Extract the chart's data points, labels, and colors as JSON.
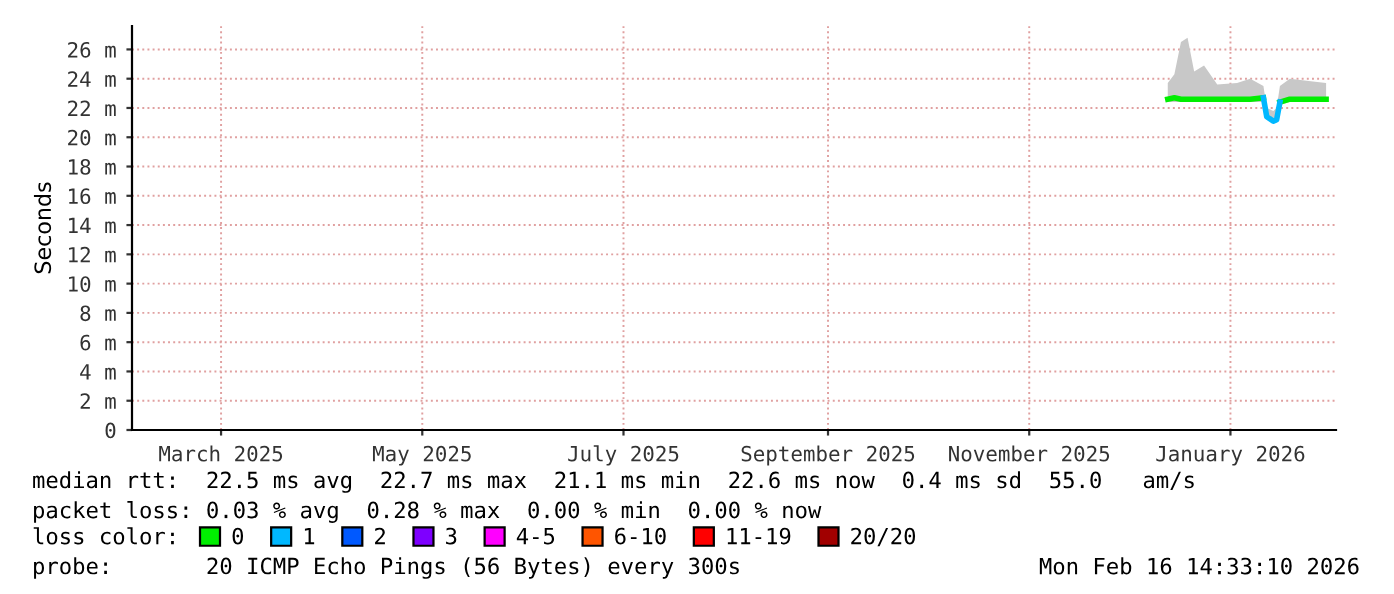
{
  "chart_data": {
    "type": "line",
    "ylabel": "Seconds",
    "legend_title": "loss color:",
    "legend": "bottom",
    "grid": true,
    "marker": "none",
    "line_style": "solid",
    "x": [
      "2025-12-27",
      "2025-12-29",
      "2025-12-31",
      "2026-01-02",
      "2026-01-04",
      "2026-01-07",
      "2026-01-11",
      "2026-01-17",
      "2026-01-21",
      "2026-01-25",
      "2026-01-26",
      "2026-01-28",
      "2026-01-29",
      "2026-01-30",
      "2026-02-02",
      "2026-02-09",
      "2026-02-13"
    ],
    "xlim": [
      "2025-02-16",
      "2026-02-16"
    ],
    "xticks": [
      {
        "value": "2025-03-15",
        "label": "March 2025"
      },
      {
        "value": "2025-05-15",
        "label": "May 2025"
      },
      {
        "value": "2025-07-15",
        "label": "July 2025"
      },
      {
        "value": "2025-09-15",
        "label": "September 2025"
      },
      {
        "value": "2025-11-15",
        "label": "November 2025"
      },
      {
        "value": "2026-01-15",
        "label": "January 2026"
      }
    ],
    "ylim": [
      0,
      27.6
    ],
    "yticks": [
      0,
      {
        "value": 2,
        "label": "2 m"
      },
      {
        "value": 4,
        "label": "4 m"
      },
      {
        "value": 6,
        "label": "6 m"
      },
      {
        "value": 8,
        "label": "8 m"
      },
      {
        "value": 10,
        "label": "10 m"
      },
      {
        "value": 12,
        "label": "12 m"
      },
      {
        "value": 14,
        "label": "14 m"
      },
      {
        "value": 16,
        "label": "16 m"
      },
      {
        "value": 18,
        "label": "18 m"
      },
      {
        "value": 20,
        "label": "20 m"
      },
      {
        "value": 22,
        "label": "22 m"
      },
      {
        "value": 24,
        "label": "24 m"
      },
      {
        "value": 26,
        "label": "26 m"
      }
    ],
    "series": [
      {
        "name": "0",
        "color": "#00ee00",
        "values": [
          22.6,
          22.7,
          22.6,
          22.6,
          22.6,
          22.6,
          22.6,
          22.6,
          22.6,
          22.7,
          null,
          null,
          null,
          22.4,
          22.6,
          22.6,
          22.6
        ],
        "lower": [
          22.4,
          22.4,
          22.4,
          22.4,
          22.4,
          22.4,
          22.4,
          22.4,
          22.4,
          22.4,
          21.2,
          21.0,
          21.0,
          22.2,
          22.4,
          22.4,
          22.4
        ],
        "upper": [
          23.7,
          24.3,
          26.5,
          26.8,
          24.5,
          24.9,
          23.6,
          23.7,
          24.0,
          23.5,
          22.0,
          21.8,
          22.0,
          23.5,
          24.0,
          23.8,
          23.7
        ]
      },
      {
        "name": "1",
        "color": "#00b8ff",
        "values": [
          null,
          null,
          null,
          null,
          null,
          null,
          null,
          null,
          null,
          22.7,
          21.4,
          21.1,
          21.2,
          22.4,
          null,
          null,
          null
        ]
      },
      {
        "name": "2",
        "color": "#0059ff",
        "values": [
          null,
          null,
          null,
          null,
          null,
          null,
          null,
          null,
          null,
          null,
          null,
          null,
          null,
          null,
          null,
          null,
          null
        ]
      },
      {
        "name": "3",
        "color": "#7e00ff",
        "values": [
          null,
          null,
          null,
          null,
          null,
          null,
          null,
          null,
          null,
          null,
          null,
          null,
          null,
          null,
          null,
          null,
          null
        ]
      },
      {
        "name": "4-5",
        "color": "#ff00ff",
        "values": [
          null,
          null,
          null,
          null,
          null,
          null,
          null,
          null,
          null,
          null,
          null,
          null,
          null,
          null,
          null,
          null,
          null
        ]
      },
      {
        "name": "6-10",
        "color": "#ff5500",
        "values": [
          null,
          null,
          null,
          null,
          null,
          null,
          null,
          null,
          null,
          null,
          null,
          null,
          null,
          null,
          null,
          null,
          null
        ]
      },
      {
        "name": "11-19",
        "color": "#ff0000",
        "values": [
          null,
          null,
          null,
          null,
          null,
          null,
          null,
          null,
          null,
          null,
          null,
          null,
          null,
          null,
          null,
          null,
          null
        ]
      },
      {
        "name": "20/20",
        "color": "#a10000",
        "values": [
          null,
          null,
          null,
          null,
          null,
          null,
          null,
          null,
          null,
          null,
          null,
          null,
          null,
          null,
          null,
          null,
          null
        ]
      }
    ],
    "annotations": [
      "median rtt:  22.5 ms avg  22.7 ms max  21.1 ms min  22.6 ms now  0.4 ms sd  55.0   am/s",
      "packet loss: 0.03 % avg  0.28 % max  0.00 % min  0.00 % now",
      "probe:       20 ICMP Echo Pings (56 Bytes) every 300s",
      "Mon Feb 16 14:33:10 2026"
    ]
  }
}
